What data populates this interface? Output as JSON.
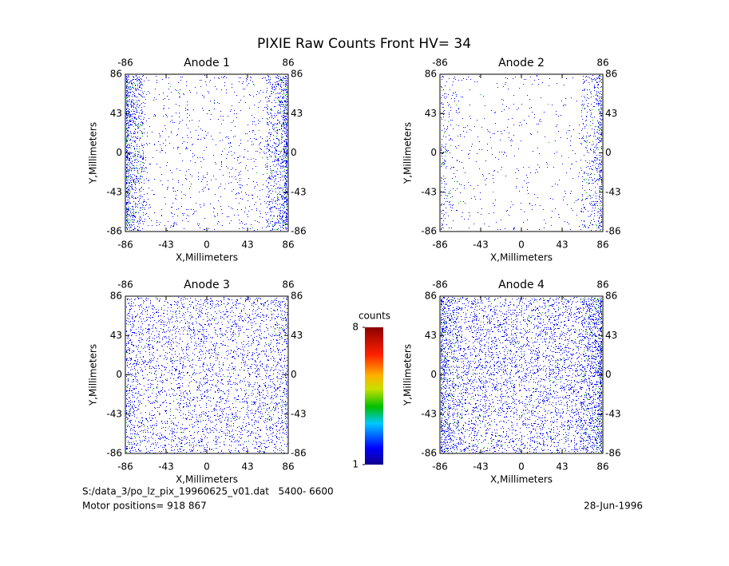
{
  "title": "PIXIE Raw Counts Front HV= 34",
  "chart_data": [
    {
      "type": "heatmap",
      "title": "Anode 1",
      "xlabel": "X,Millimeters",
      "ylabel": "Y,Millimeters",
      "xlim": [
        -86,
        86
      ],
      "ylim": [
        -86,
        86
      ],
      "xticks": [
        -86,
        -43,
        0,
        43,
        86
      ],
      "yticks": [
        -86,
        -43,
        0,
        43,
        86
      ],
      "top_ticks": [
        -86,
        86
      ]
    },
    {
      "type": "heatmap",
      "title": "Anode 2",
      "xlabel": "X,Millimeters",
      "ylabel": "Y,Millimeters",
      "xlim": [
        -86,
        86
      ],
      "ylim": [
        -86,
        86
      ],
      "xticks": [
        -86,
        -43,
        0,
        43,
        86
      ],
      "yticks": [
        -86,
        -43,
        0,
        43,
        86
      ],
      "top_ticks": [
        -86,
        86
      ]
    },
    {
      "type": "heatmap",
      "title": "Anode 3",
      "xlabel": "X,Millimeters",
      "ylabel": "Y,Millimeters",
      "xlim": [
        -86,
        86
      ],
      "ylim": [
        -86,
        86
      ],
      "xticks": [
        -86,
        -43,
        0,
        43,
        86
      ],
      "yticks": [
        -86,
        -43,
        0,
        43,
        86
      ],
      "top_ticks": [
        -86,
        86
      ]
    },
    {
      "type": "heatmap",
      "title": "Anode 4",
      "xlabel": "X,Millimeters",
      "ylabel": "Y,Millimeters",
      "xlim": [
        -86,
        86
      ],
      "ylim": [
        -86,
        86
      ],
      "xticks": [
        -86,
        -43,
        0,
        43,
        86
      ],
      "yticks": [
        -86,
        -43,
        0,
        43,
        86
      ],
      "top_ticks": [
        -86,
        86
      ]
    }
  ],
  "colorbar": {
    "label": "counts",
    "lim": [
      1,
      8
    ],
    "ticks": [
      1,
      8
    ]
  },
  "footer": {
    "file": "S:/data_3/po_lz_pix_19960625_v01.dat   5400- 6600",
    "motor": "Motor positions= 918 867",
    "date": "28-Jun-1996"
  }
}
